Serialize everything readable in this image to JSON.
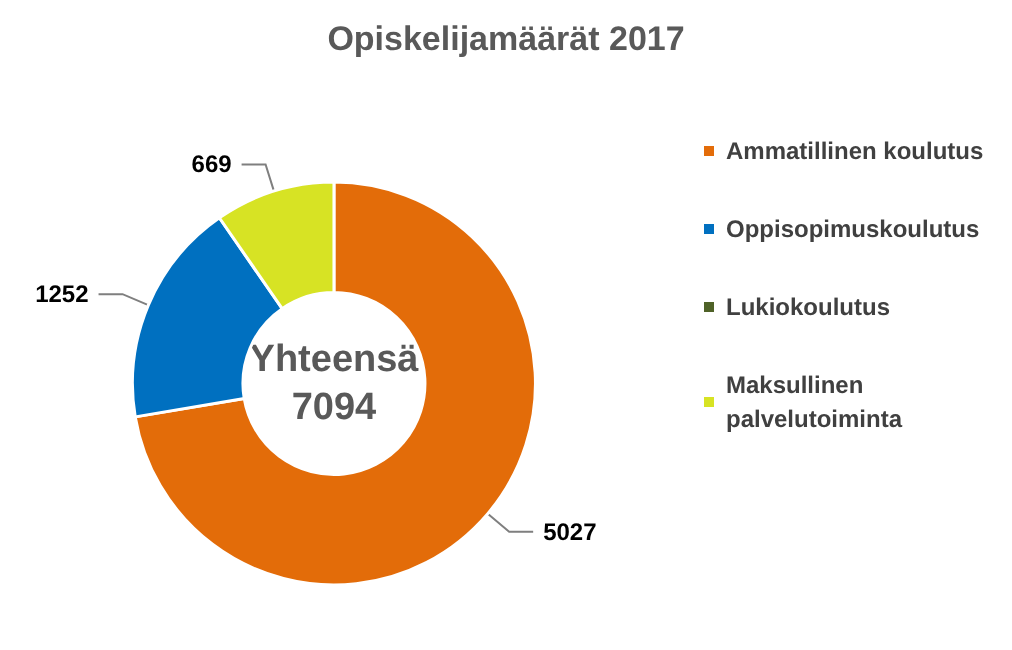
{
  "chart_data": {
    "type": "donut",
    "title": "Opiskelijamäärät 2017",
    "categories": [
      "Ammatillinen koulutus",
      "Oppisopimuskoulutus",
      "Lukiokoulutus",
      "Maksullinen palvelutoiminta"
    ],
    "values": [
      5027,
      1252,
      null,
      669
    ],
    "colors": [
      "#e36c09",
      "#0070c0",
      "#4f6228",
      "#d7e324"
    ],
    "data_labels": true,
    "legend": "right",
    "annotations": [
      "Yhteensä\n7094"
    ]
  }
}
